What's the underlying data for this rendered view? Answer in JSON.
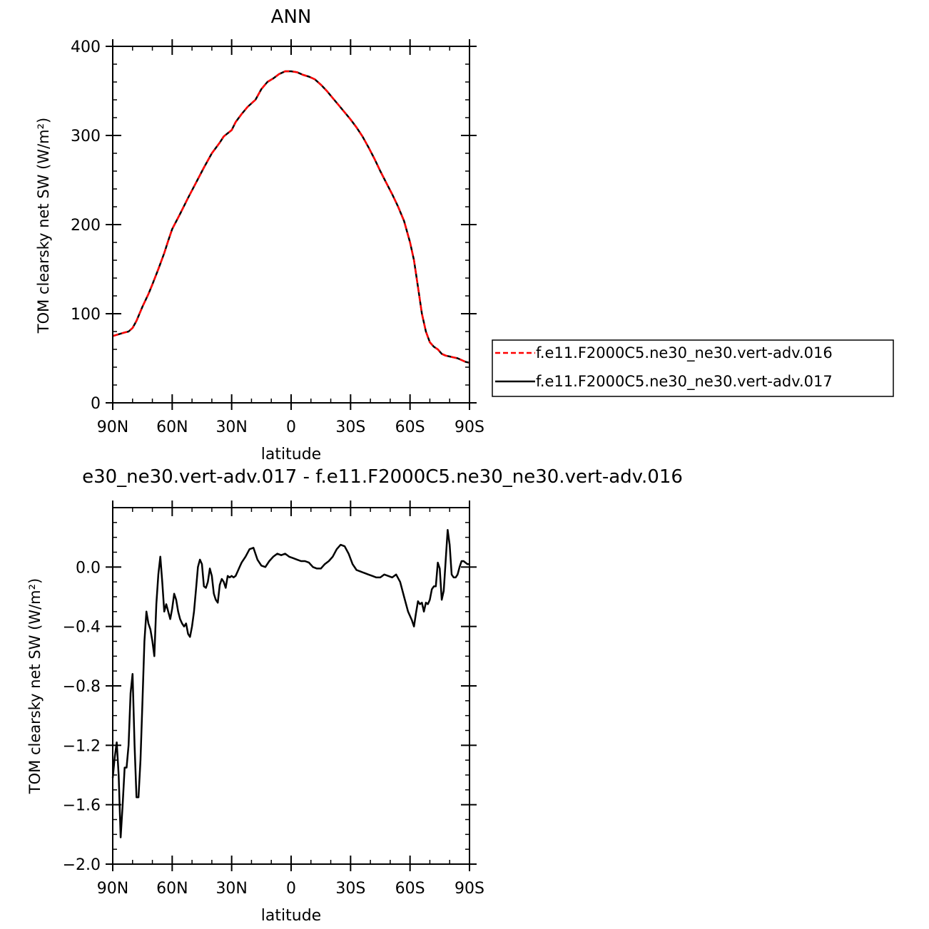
{
  "chart_data": [
    {
      "type": "line",
      "title": "ANN",
      "xlabel": "latitude",
      "ylabel": "TOM clearsky net SW (W/m²)",
      "xlim": [
        90,
        -90
      ],
      "ylim": [
        0,
        400
      ],
      "xticks": [
        {
          "v": 90,
          "label": "90N"
        },
        {
          "v": 60,
          "label": "60N"
        },
        {
          "v": 30,
          "label": "30N"
        },
        {
          "v": 0,
          "label": "0"
        },
        {
          "v": -30,
          "label": "30S"
        },
        {
          "v": -60,
          "label": "60S"
        },
        {
          "v": -90,
          "label": "90S"
        }
      ],
      "yticks": [
        {
          "v": 0,
          "label": "0"
        },
        {
          "v": 100,
          "label": "100"
        },
        {
          "v": 200,
          "label": "200"
        },
        {
          "v": 300,
          "label": "300"
        },
        {
          "v": 400,
          "label": "400"
        }
      ],
      "legend_position": "right",
      "series": [
        {
          "name": "f.e11.F2000C5.ne30_ne30.vert-adv.016",
          "color": "#ff0000",
          "style": "dashed",
          "x": [
            90,
            87,
            84,
            82,
            80,
            78,
            75,
            72,
            70,
            67,
            64,
            62,
            60,
            56,
            52,
            48,
            44,
            40,
            36,
            34,
            30,
            28,
            25,
            22,
            18,
            15,
            12,
            9,
            6,
            3,
            0,
            -3,
            -6,
            -9,
            -12,
            -15,
            -18,
            -21,
            -24,
            -27,
            -30,
            -33,
            -36,
            -39,
            -42,
            -45,
            -48,
            -51,
            -54,
            -57,
            -60,
            -62,
            -64,
            -66,
            -68,
            -70,
            -72,
            -74,
            -76,
            -78,
            -80,
            -82,
            -84,
            -86,
            -88,
            -90
          ],
          "y": [
            75,
            77,
            79,
            80,
            84,
            92,
            108,
            122,
            133,
            150,
            168,
            182,
            195,
            212,
            230,
            247,
            264,
            280,
            292,
            299,
            306,
            315,
            324,
            332,
            340,
            352,
            360,
            364,
            369,
            372,
            372,
            371,
            368,
            366,
            363,
            357,
            350,
            342,
            334,
            326,
            318,
            309,
            299,
            287,
            274,
            260,
            247,
            234,
            220,
            204,
            180,
            160,
            130,
            100,
            80,
            68,
            63,
            60,
            55,
            53,
            52,
            51,
            50,
            48,
            46,
            45
          ]
        },
        {
          "name": "f.e11.F2000C5.ne30_ne30.vert-adv.017",
          "color": "#000000",
          "style": "solid",
          "x": [
            90,
            87,
            84,
            82,
            80,
            78,
            75,
            72,
            70,
            67,
            64,
            62,
            60,
            56,
            52,
            48,
            44,
            40,
            36,
            34,
            30,
            28,
            25,
            22,
            18,
            15,
            12,
            9,
            6,
            3,
            0,
            -3,
            -6,
            -9,
            -12,
            -15,
            -18,
            -21,
            -24,
            -27,
            -30,
            -33,
            -36,
            -39,
            -42,
            -45,
            -48,
            -51,
            -54,
            -57,
            -60,
            -62,
            -64,
            -66,
            -68,
            -70,
            -72,
            -74,
            -76,
            -78,
            -80,
            -82,
            -84,
            -86,
            -88,
            -90
          ],
          "y": [
            75,
            77,
            79,
            80,
            84,
            92,
            108,
            122,
            133,
            150,
            168,
            182,
            195,
            212,
            230,
            247,
            264,
            280,
            292,
            299,
            306,
            315,
            324,
            332,
            340,
            352,
            360,
            364,
            369,
            372,
            372,
            371,
            368,
            366,
            363,
            357,
            350,
            342,
            334,
            326,
            318,
            309,
            299,
            287,
            274,
            260,
            247,
            234,
            220,
            204,
            180,
            160,
            130,
            100,
            80,
            68,
            63,
            60,
            55,
            53,
            52,
            51,
            50,
            48,
            46,
            45
          ]
        }
      ]
    },
    {
      "type": "line",
      "title": "e30_ne30.vert-adv.017 - f.e11.F2000C5.ne30_ne30.vert-adv.016",
      "xlabel": "latitude",
      "ylabel": "TOM clearsky net SW (W/m²)",
      "xlim": [
        90,
        -90
      ],
      "ylim": [
        -2.0,
        0.4
      ],
      "xticks": [
        {
          "v": 90,
          "label": "90N"
        },
        {
          "v": 60,
          "label": "60N"
        },
        {
          "v": 30,
          "label": "30N"
        },
        {
          "v": 0,
          "label": "0"
        },
        {
          "v": -30,
          "label": "30S"
        },
        {
          "v": -60,
          "label": "60S"
        },
        {
          "v": -90,
          "label": "90S"
        }
      ],
      "yticks": [
        {
          "v": -2.0,
          "label": "−2.0"
        },
        {
          "v": -1.6,
          "label": "−1.6"
        },
        {
          "v": -1.2,
          "label": "−1.2"
        },
        {
          "v": -0.8,
          "label": "−0.8"
        },
        {
          "v": -0.4,
          "label": "−0.4"
        },
        {
          "v": 0.0,
          "label": "0.0"
        }
      ],
      "series": [
        {
          "color": "#000000",
          "style": "solid",
          "x": [
            90,
            89,
            88,
            87,
            86,
            85,
            84,
            83,
            82,
            81,
            80,
            79,
            78,
            77,
            76,
            75,
            74,
            73,
            72,
            71,
            70,
            69,
            68,
            67,
            66,
            65,
            64,
            63,
            62,
            61,
            60,
            59,
            58,
            57,
            56,
            55,
            54,
            53,
            52,
            51,
            50,
            49,
            48,
            47,
            46,
            45,
            44,
            43,
            42,
            41,
            40,
            39,
            38,
            37,
            36,
            35,
            34,
            33,
            32,
            31,
            30,
            29,
            28,
            27,
            26,
            25,
            23,
            21,
            19,
            17,
            15,
            13,
            11,
            9,
            7,
            5,
            3,
            1,
            -1,
            -3,
            -5,
            -7,
            -9,
            -11,
            -13,
            -15,
            -17,
            -19,
            -21,
            -23,
            -25,
            -27,
            -29,
            -31,
            -33,
            -35,
            -37,
            -39,
            -41,
            -43,
            -45,
            -47,
            -49,
            -51,
            -53,
            -55,
            -57,
            -59,
            -61,
            -62,
            -63,
            -64,
            -65,
            -66,
            -67,
            -68,
            -69,
            -70,
            -71,
            -72,
            -73,
            -74,
            -75,
            -76,
            -77,
            -78,
            -79,
            -80,
            -81,
            -82,
            -83,
            -84,
            -85,
            -86,
            -87,
            -88,
            -89,
            -90
          ],
          "y": [
            -1.42,
            -1.28,
            -1.18,
            -1.4,
            -1.82,
            -1.6,
            -1.35,
            -1.35,
            -1.2,
            -0.85,
            -0.72,
            -1.2,
            -1.55,
            -1.55,
            -1.3,
            -0.9,
            -0.5,
            -0.3,
            -0.38,
            -0.42,
            -0.5,
            -0.6,
            -0.25,
            -0.05,
            0.07,
            -0.1,
            -0.3,
            -0.25,
            -0.3,
            -0.35,
            -0.28,
            -0.18,
            -0.22,
            -0.3,
            -0.35,
            -0.38,
            -0.4,
            -0.38,
            -0.45,
            -0.47,
            -0.4,
            -0.3,
            -0.15,
            0.0,
            0.05,
            0.02,
            -0.13,
            -0.14,
            -0.1,
            -0.01,
            -0.06,
            -0.18,
            -0.22,
            -0.24,
            -0.12,
            -0.08,
            -0.1,
            -0.14,
            -0.06,
            -0.07,
            -0.06,
            -0.07,
            -0.06,
            -0.03,
            0.0,
            0.03,
            0.07,
            0.12,
            0.13,
            0.05,
            0.01,
            0.0,
            0.04,
            0.07,
            0.09,
            0.08,
            0.09,
            0.07,
            0.06,
            0.05,
            0.04,
            0.04,
            0.03,
            0.0,
            -0.01,
            -0.01,
            0.02,
            0.04,
            0.07,
            0.12,
            0.15,
            0.14,
            0.09,
            0.02,
            -0.02,
            -0.03,
            -0.04,
            -0.05,
            -0.06,
            -0.07,
            -0.07,
            -0.05,
            -0.06,
            -0.07,
            -0.05,
            -0.1,
            -0.2,
            -0.3,
            -0.36,
            -0.4,
            -0.31,
            -0.23,
            -0.25,
            -0.24,
            -0.3,
            -0.24,
            -0.25,
            -0.22,
            -0.15,
            -0.13,
            -0.13,
            0.03,
            -0.01,
            -0.22,
            -0.16,
            0.05,
            0.25,
            0.15,
            -0.05,
            -0.07,
            -0.07,
            -0.05,
            0.0,
            0.04,
            0.04,
            0.03,
            0.02,
            0.02
          ]
        }
      ]
    }
  ]
}
